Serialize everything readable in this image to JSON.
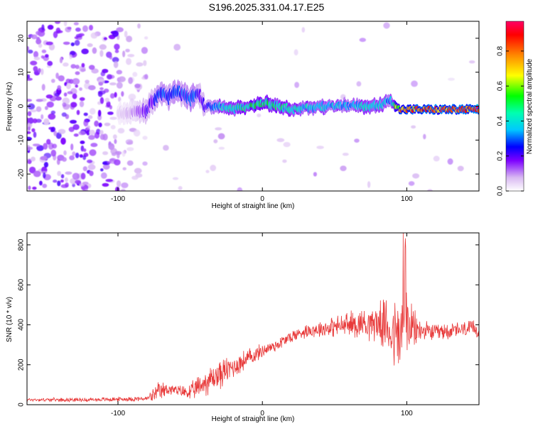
{
  "title": "S196.2025.331.04.17.E25",
  "chart_data": [
    {
      "type": "heatmap",
      "xlabel": "Height of straight line (km)",
      "ylabel": "Frequency (Hz)",
      "xlim": [
        -163,
        150
      ],
      "ylim": [
        -25,
        25
      ],
      "xticks": [
        -100,
        0,
        100
      ],
      "yticks": [
        -20,
        -10,
        0,
        10,
        20
      ],
      "colorbar": {
        "label": "Normalized spectral amplitude",
        "range": [
          0,
          0.97
        ],
        "ticks": [
          "0.0",
          "0.2",
          "0.4",
          "0.6",
          "0.8"
        ],
        "tick_values": [
          0.0,
          0.2,
          0.4,
          0.6,
          0.8
        ]
      },
      "ridge": {
        "x": [
          -100,
          -90,
          -80,
          -75,
          -70,
          -65,
          -60,
          -55,
          -50,
          -45,
          -40,
          -35,
          -30,
          -20,
          -10,
          0,
          10,
          20,
          40,
          60,
          80,
          88,
          95,
          110,
          130,
          148
        ],
        "freq": [
          -2,
          -2,
          -1,
          2,
          4,
          3,
          4,
          4,
          2,
          4,
          0,
          0,
          0,
          -1,
          0,
          1,
          0,
          -1,
          0,
          0,
          0,
          2,
          -1,
          -1,
          -1,
          -1
        ],
        "amplitude": [
          0.05,
          0.1,
          0.2,
          0.25,
          0.3,
          0.3,
          0.3,
          0.3,
          0.3,
          0.3,
          0.2,
          0.3,
          0.4,
          0.45,
          0.5,
          0.55,
          0.5,
          0.45,
          0.4,
          0.4,
          0.45,
          0.35,
          0.8,
          0.85,
          0.9,
          0.95
        ]
      }
    },
    {
      "type": "line",
      "xlabel": "Height of straight line (km)",
      "ylabel": "SNR (10 * v/v)",
      "xlim": [
        -163,
        150
      ],
      "ylim": [
        0,
        860
      ],
      "xticks": [
        -100,
        0,
        100
      ],
      "yticks": [
        0,
        200,
        400,
        600,
        800
      ],
      "color": "#e83a3a",
      "envelope": {
        "x": [
          -163,
          -120,
          -80,
          -72,
          -65,
          -60,
          -50,
          -40,
          -30,
          -20,
          -10,
          0,
          10,
          20,
          30,
          40,
          50,
          60,
          70,
          80,
          85,
          90,
          95,
          98,
          100,
          102,
          110,
          120,
          130,
          140,
          150
        ],
        "mean": [
          25,
          25,
          30,
          60,
          80,
          70,
          60,
          110,
          150,
          190,
          230,
          270,
          300,
          340,
          370,
          380,
          390,
          400,
          410,
          410,
          400,
          360,
          330,
          420,
          400,
          380,
          370,
          360,
          370,
          375,
          380
        ],
        "spread": [
          10,
          12,
          15,
          60,
          40,
          30,
          50,
          80,
          90,
          70,
          60,
          40,
          40,
          40,
          40,
          50,
          60,
          80,
          90,
          110,
          150,
          200,
          250,
          300,
          250,
          150,
          60,
          50,
          50,
          50,
          50
        ]
      }
    }
  ]
}
